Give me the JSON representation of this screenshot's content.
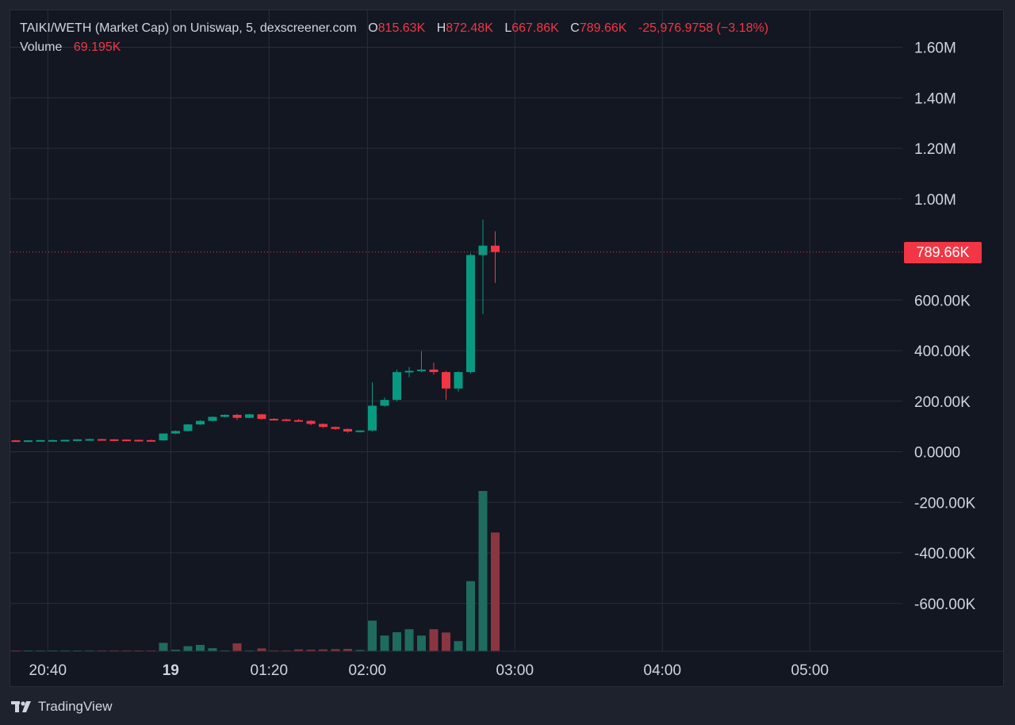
{
  "header": {
    "symbol": "TAIKI/WETH (Market Cap) on Uniswap, 5, dexscreener.com",
    "o_label": "O",
    "o_value": "815.63K",
    "h_label": "H",
    "h_value": "872.48K",
    "l_label": "L",
    "l_value": "667.86K",
    "c_label": "C",
    "c_value": "789.66K",
    "change": "-25,976.9758 (−3.18%)",
    "volume_label": "Volume",
    "volume_value": "69.195K"
  },
  "last_price": {
    "label": "789.66K",
    "value": 789.66
  },
  "brand": {
    "name": "TradingView",
    "icon": "tradingview-logo-icon"
  },
  "colors": {
    "up": "#089981",
    "down": "#f23645",
    "up_volume": "#1f6b5e",
    "down_volume": "#8a3640",
    "background": "#131722",
    "grid": "#2a2e39",
    "text": "#d1d4dc"
  },
  "chart_data": {
    "type": "candlestick",
    "title": "TAIKI/WETH (Market Cap) on Uniswap, 5, dexscreener.com",
    "y_unit": "K",
    "y_ticks": [
      {
        "value": 1600,
        "label": "1.60M"
      },
      {
        "value": 1400,
        "label": "1.40M"
      },
      {
        "value": 1200,
        "label": "1.20M"
      },
      {
        "value": 1000,
        "label": "1.00M"
      },
      {
        "value": 600,
        "label": "600.00K"
      },
      {
        "value": 400,
        "label": "400.00K"
      },
      {
        "value": 200,
        "label": "200.00K"
      },
      {
        "value": 0,
        "label": "0.0000"
      },
      {
        "value": -200,
        "label": "-200.00K"
      },
      {
        "value": -400,
        "label": "-400.00K"
      },
      {
        "value": -600,
        "label": "-600.00K"
      }
    ],
    "y_range": [
      -785,
      1670
    ],
    "x_ticks": [
      {
        "label": "20:40",
        "index": 2.6,
        "bold": false
      },
      {
        "label": "19",
        "index": 12.6,
        "bold": true
      },
      {
        "label": "01:20",
        "index": 20.6,
        "bold": false
      },
      {
        "label": "02:00",
        "index": 28.6,
        "bold": false
      },
      {
        "label": "03:00",
        "index": 40.6,
        "bold": false
      },
      {
        "label": "04:00",
        "index": 52.6,
        "bold": false
      },
      {
        "label": "05:00",
        "index": 64.6,
        "bold": false
      }
    ],
    "grid": true,
    "candles": [
      {
        "o": 45,
        "h": 47,
        "l": 43,
        "c": 44,
        "v": 2
      },
      {
        "o": 44,
        "h": 46,
        "l": 43,
        "c": 45,
        "v": 2
      },
      {
        "o": 45,
        "h": 47,
        "l": 44,
        "c": 46,
        "v": 2
      },
      {
        "o": 46,
        "h": 48,
        "l": 45,
        "c": 46,
        "v": 2
      },
      {
        "o": 46,
        "h": 48,
        "l": 45,
        "c": 47,
        "v": 3
      },
      {
        "o": 47,
        "h": 50,
        "l": 46,
        "c": 49,
        "v": 3
      },
      {
        "o": 49,
        "h": 52,
        "l": 48,
        "c": 50,
        "v": 2
      },
      {
        "o": 50,
        "h": 51,
        "l": 48,
        "c": 49,
        "v": 2
      },
      {
        "o": 49,
        "h": 50,
        "l": 47,
        "c": 48,
        "v": 2
      },
      {
        "o": 48,
        "h": 49,
        "l": 46,
        "c": 47,
        "v": 2
      },
      {
        "o": 47,
        "h": 48,
        "l": 45,
        "c": 46,
        "v": 2
      },
      {
        "o": 46,
        "h": 48,
        "l": 44,
        "c": 45,
        "v": 2
      },
      {
        "o": 45,
        "h": 72,
        "l": 44,
        "c": 72,
        "v": 33
      },
      {
        "o": 72,
        "h": 84,
        "l": 70,
        "c": 82,
        "v": 6
      },
      {
        "o": 82,
        "h": 110,
        "l": 80,
        "c": 108,
        "v": 20
      },
      {
        "o": 108,
        "h": 125,
        "l": 106,
        "c": 122,
        "v": 25
      },
      {
        "o": 122,
        "h": 140,
        "l": 120,
        "c": 138,
        "v": 12
      },
      {
        "o": 138,
        "h": 148,
        "l": 136,
        "c": 146,
        "v": 3
      },
      {
        "o": 146,
        "h": 150,
        "l": 125,
        "c": 134,
        "v": 31
      },
      {
        "o": 134,
        "h": 150,
        "l": 132,
        "c": 148,
        "v": 2
      },
      {
        "o": 148,
        "h": 150,
        "l": 126,
        "c": 130,
        "v": 11
      },
      {
        "o": 130,
        "h": 133,
        "l": 125,
        "c": 128,
        "v": 2
      },
      {
        "o": 128,
        "h": 131,
        "l": 124,
        "c": 125,
        "v": 2
      },
      {
        "o": 125,
        "h": 130,
        "l": 120,
        "c": 122,
        "v": 7
      },
      {
        "o": 122,
        "h": 125,
        "l": 105,
        "c": 110,
        "v": 6
      },
      {
        "o": 110,
        "h": 112,
        "l": 94,
        "c": 98,
        "v": 7
      },
      {
        "o": 98,
        "h": 100,
        "l": 86,
        "c": 90,
        "v": 8
      },
      {
        "o": 90,
        "h": 92,
        "l": 75,
        "c": 80,
        "v": 9
      },
      {
        "o": 80,
        "h": 85,
        "l": 76,
        "c": 84,
        "v": 5
      },
      {
        "o": 84,
        "h": 275,
        "l": 80,
        "c": 182,
        "v": 121
      },
      {
        "o": 182,
        "h": 215,
        "l": 178,
        "c": 205,
        "v": 62
      },
      {
        "o": 205,
        "h": 325,
        "l": 200,
        "c": 315,
        "v": 75
      },
      {
        "o": 315,
        "h": 335,
        "l": 295,
        "c": 320,
        "v": 87
      },
      {
        "o": 320,
        "h": 398,
        "l": 315,
        "c": 325,
        "v": 62
      },
      {
        "o": 325,
        "h": 352,
        "l": 305,
        "c": 315,
        "v": 87
      },
      {
        "o": 315,
        "h": 320,
        "l": 205,
        "c": 250,
        "v": 74
      },
      {
        "o": 250,
        "h": 318,
        "l": 238,
        "c": 315,
        "v": 40
      },
      {
        "o": 315,
        "h": 785,
        "l": 310,
        "c": 778,
        "v": 277
      },
      {
        "o": 778,
        "h": 918,
        "l": 545,
        "c": 815,
        "v": 633
      },
      {
        "o": 815,
        "h": 872,
        "l": 668,
        "c": 790,
        "v": 469
      }
    ]
  }
}
